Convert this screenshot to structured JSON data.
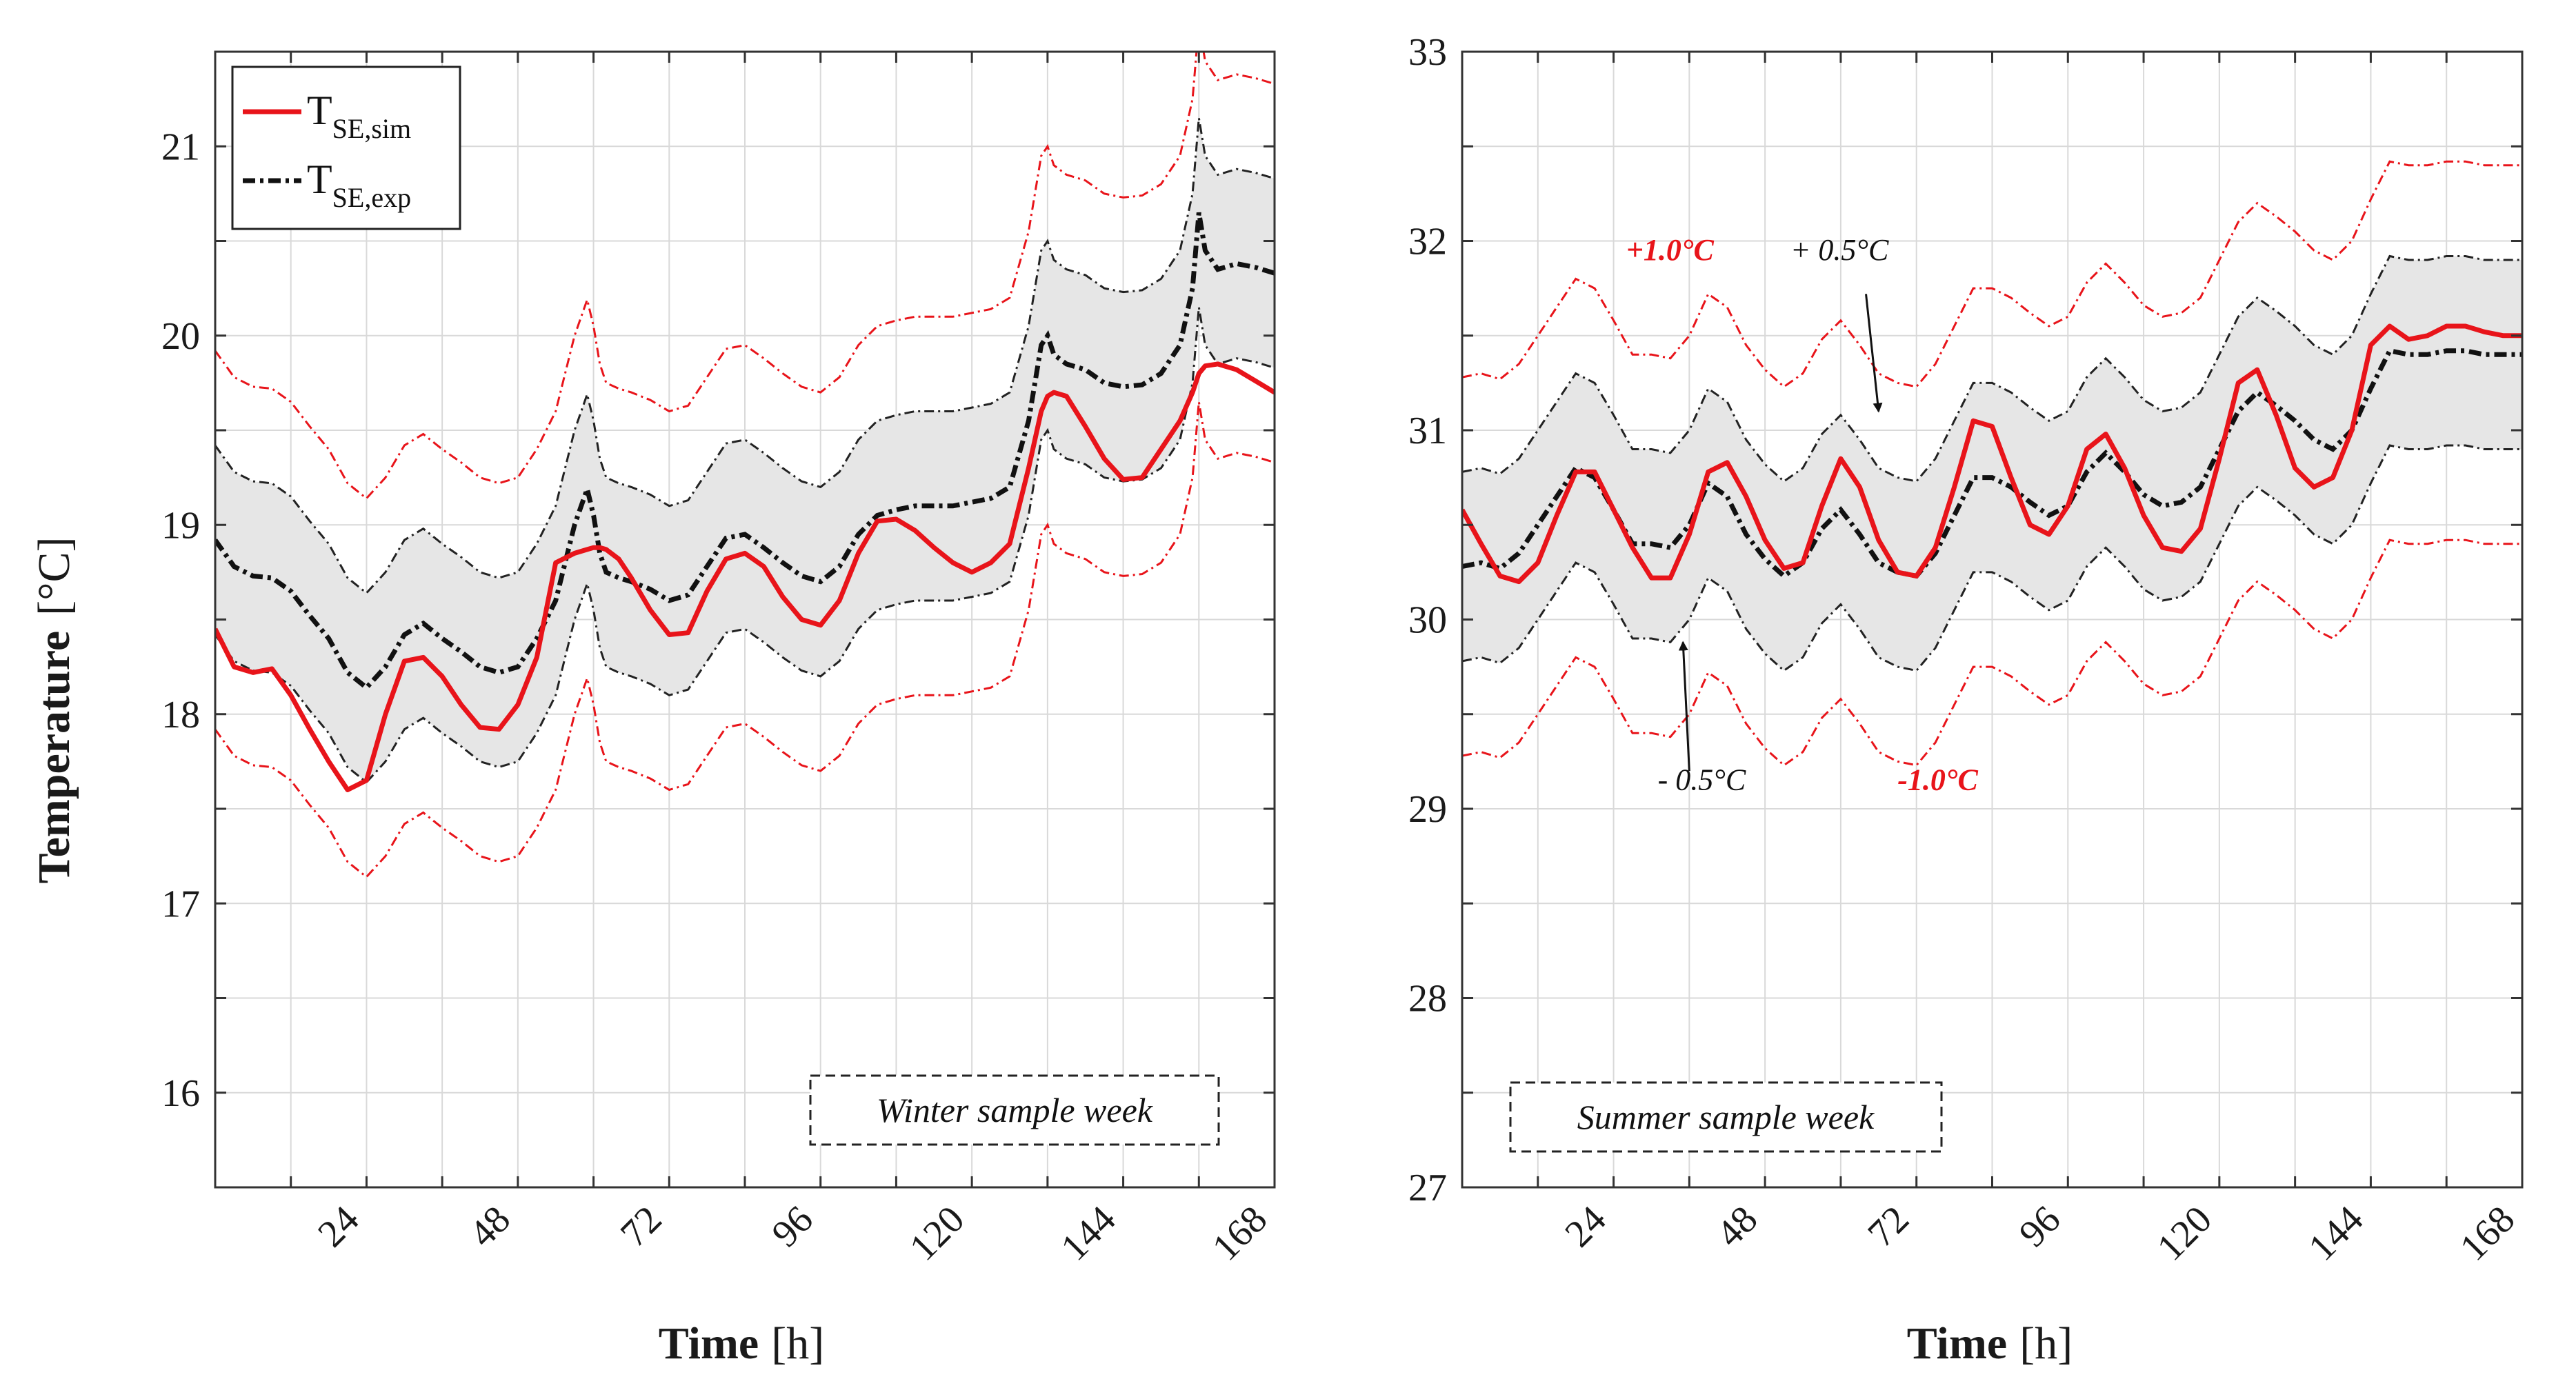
{
  "figure": {
    "ylabel_bold": "Temperature",
    "ylabel_unit": "[°C]"
  },
  "colors": {
    "sim": "#e8141a",
    "exp": "#111111",
    "band_fill": "#e6e6e6",
    "band_red": "#e8141a",
    "band_black": "#222222",
    "grid": "#d9d9d9"
  },
  "legend": {
    "sim": {
      "main": "T",
      "sub": "SE,sim"
    },
    "exp": {
      "main": "T",
      "sub": "SE,exp"
    }
  },
  "chart_data": [
    {
      "type": "line",
      "name": "winter",
      "box_label": "Winter sample week",
      "xlabel_bold": "Time",
      "xlabel_unit": "[h]",
      "xlim": [
        0,
        168
      ],
      "ylim": [
        15.5,
        21.5
      ],
      "xticks": [
        24,
        48,
        72,
        96,
        120,
        144,
        168
      ],
      "yticks": [
        16,
        17,
        18,
        19,
        20,
        21
      ],
      "xgrid": [
        0,
        12,
        24,
        36,
        48,
        60,
        72,
        84,
        96,
        108,
        120,
        132,
        144,
        156,
        168
      ],
      "ygrid": [
        15.5,
        16,
        16.5,
        17,
        17.5,
        18,
        18.5,
        19,
        19.5,
        20,
        20.5,
        21,
        21.5
      ],
      "x": [
        0,
        3,
        6,
        9,
        12,
        15,
        18,
        21,
        24,
        27,
        30,
        33,
        36,
        39,
        42,
        45,
        48,
        51,
        54,
        57,
        59,
        60,
        61,
        62,
        64,
        66,
        69,
        72,
        75,
        78,
        81,
        84,
        87,
        90,
        93,
        96,
        99,
        102,
        105,
        108,
        111,
        114,
        117,
        120,
        123,
        126,
        129,
        131,
        132,
        133,
        135,
        138,
        141,
        144,
        147,
        150,
        153,
        155,
        156,
        157,
        159,
        162,
        165,
        168
      ],
      "series": [
        {
          "name": "sim",
          "values": [
            18.45,
            18.25,
            18.22,
            18.24,
            18.1,
            17.92,
            17.75,
            17.6,
            17.65,
            18.0,
            18.28,
            18.3,
            18.2,
            18.05,
            17.93,
            17.92,
            18.05,
            18.3,
            18.8,
            18.85,
            18.87,
            18.88,
            18.88,
            18.87,
            18.82,
            18.72,
            18.55,
            18.42,
            18.43,
            18.65,
            18.82,
            18.85,
            18.78,
            18.62,
            18.5,
            18.47,
            18.6,
            18.85,
            19.02,
            19.03,
            18.97,
            18.88,
            18.8,
            18.75,
            18.8,
            18.9,
            19.3,
            19.6,
            19.68,
            19.7,
            19.68,
            19.52,
            19.35,
            19.24,
            19.25,
            19.4,
            19.55,
            19.7,
            19.8,
            19.84,
            19.85,
            19.82,
            19.76,
            19.7
          ]
        },
        {
          "name": "exp",
          "values": [
            18.92,
            18.78,
            18.73,
            18.72,
            18.65,
            18.52,
            18.4,
            18.22,
            18.14,
            18.25,
            18.42,
            18.48,
            18.4,
            18.33,
            18.25,
            18.22,
            18.25,
            18.4,
            18.6,
            19.0,
            19.19,
            19.05,
            18.85,
            18.75,
            18.72,
            18.7,
            18.66,
            18.6,
            18.63,
            18.78,
            18.93,
            18.95,
            18.88,
            18.8,
            18.73,
            18.7,
            18.78,
            18.95,
            19.05,
            19.08,
            19.1,
            19.1,
            19.1,
            19.12,
            19.14,
            19.2,
            19.55,
            19.95,
            20.0,
            19.9,
            19.85,
            19.82,
            19.75,
            19.73,
            19.74,
            19.8,
            19.95,
            20.25,
            20.65,
            20.45,
            20.35,
            20.38,
            20.36,
            20.33
          ]
        }
      ],
      "bands": [
        {
          "offset": 0.5,
          "label": ""
        },
        {
          "offset": 1.0,
          "label": ""
        }
      ]
    },
    {
      "type": "line",
      "name": "summer",
      "box_label": "Summer sample week",
      "xlabel_bold": "Time",
      "xlabel_unit": "[h]",
      "xlim": [
        0,
        168
      ],
      "ylim": [
        27,
        33
      ],
      "xticks": [
        24,
        48,
        72,
        96,
        120,
        144,
        168
      ],
      "yticks": [
        27,
        28,
        29,
        30,
        31,
        32,
        33
      ],
      "xgrid": [
        0,
        12,
        24,
        36,
        48,
        60,
        72,
        84,
        96,
        108,
        120,
        132,
        144,
        156,
        168
      ],
      "ygrid": [
        27,
        27.5,
        28,
        28.5,
        29,
        29.5,
        30,
        30.5,
        31,
        31.5,
        32,
        32.5,
        33
      ],
      "x": [
        0,
        3,
        6,
        9,
        12,
        15,
        18,
        21,
        24,
        27,
        30,
        33,
        36,
        39,
        42,
        45,
        48,
        51,
        54,
        57,
        60,
        63,
        66,
        69,
        72,
        75,
        78,
        81,
        84,
        87,
        90,
        93,
        96,
        99,
        102,
        105,
        108,
        111,
        114,
        117,
        120,
        123,
        126,
        129,
        132,
        135,
        138,
        141,
        144,
        147,
        150,
        153,
        156,
        159,
        162,
        165,
        168
      ],
      "series": [
        {
          "name": "sim",
          "values": [
            30.58,
            30.4,
            30.23,
            30.2,
            30.3,
            30.55,
            30.78,
            30.78,
            30.58,
            30.38,
            30.22,
            30.22,
            30.45,
            30.78,
            30.83,
            30.65,
            30.42,
            30.27,
            30.3,
            30.6,
            30.85,
            30.7,
            30.42,
            30.25,
            30.23,
            30.38,
            30.7,
            31.05,
            31.02,
            30.75,
            30.5,
            30.45,
            30.6,
            30.9,
            30.98,
            30.8,
            30.55,
            30.38,
            30.36,
            30.48,
            30.85,
            31.25,
            31.32,
            31.08,
            30.8,
            30.7,
            30.75,
            31.0,
            31.45,
            31.55,
            31.48,
            31.5,
            31.55,
            31.55,
            31.52,
            31.5,
            31.5
          ]
        },
        {
          "name": "exp",
          "values": [
            30.28,
            30.3,
            30.27,
            30.35,
            30.5,
            30.65,
            30.8,
            30.75,
            30.58,
            30.4,
            30.4,
            30.38,
            30.5,
            30.72,
            30.65,
            30.45,
            30.32,
            30.23,
            30.3,
            30.48,
            30.58,
            30.45,
            30.3,
            30.25,
            30.23,
            30.35,
            30.55,
            30.75,
            30.75,
            30.7,
            30.62,
            30.55,
            30.6,
            30.78,
            30.88,
            30.78,
            30.66,
            30.6,
            30.62,
            30.7,
            30.9,
            31.1,
            31.2,
            31.13,
            31.05,
            30.95,
            30.9,
            31.0,
            31.22,
            31.42,
            31.4,
            31.4,
            31.42,
            31.42,
            31.4,
            31.4,
            31.4
          ]
        }
      ],
      "bands": [
        {
          "offset": 0.5,
          "label": ""
        },
        {
          "offset": 1.0,
          "label": ""
        }
      ],
      "annotations": [
        {
          "id": "plus1",
          "text": "+1.0°C",
          "color": "red",
          "x": 26,
          "y": 31.9
        },
        {
          "id": "plus05",
          "text": "+ 0.5°C",
          "color": "black",
          "x": 52,
          "y": 31.9
        },
        {
          "id": "minus05",
          "text": "- 0.5°C",
          "color": "black",
          "x": 31,
          "y": 29.1
        },
        {
          "id": "minus1",
          "text": "-1.0°C",
          "color": "red",
          "x": 69,
          "y": 29.1
        }
      ],
      "arrows": [
        {
          "from": [
            64,
            31.72
          ],
          "to": [
            66,
            31.1
          ]
        },
        {
          "from": [
            36,
            29.2
          ],
          "to": [
            35,
            29.88
          ]
        }
      ]
    }
  ]
}
